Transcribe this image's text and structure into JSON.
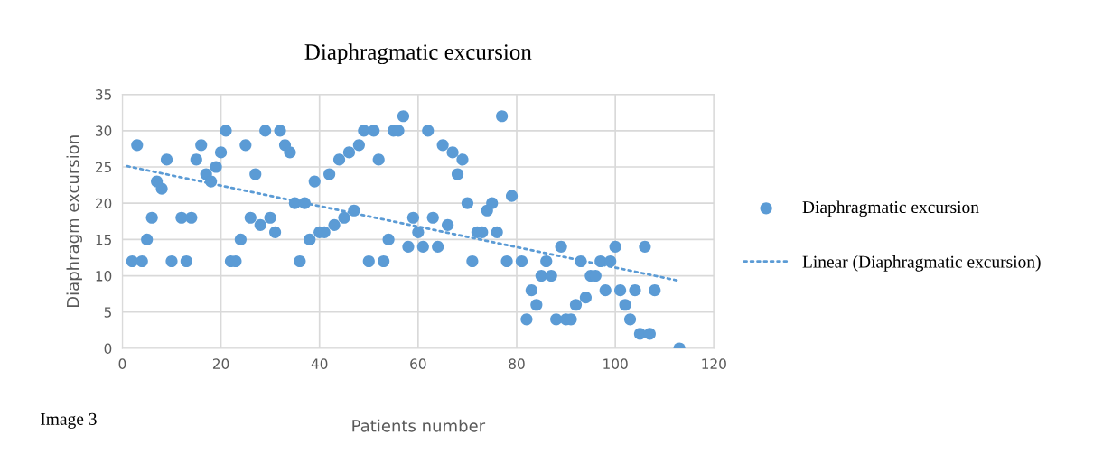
{
  "chart_data": {
    "type": "scatter",
    "title": "Diaphragmatic excursion",
    "xlabel": "Patients number",
    "ylabel": "Diaphragm excursion",
    "annotations": [
      "Image 3"
    ],
    "xlim": [
      0,
      120
    ],
    "xticks": [
      0,
      20,
      40,
      60,
      80,
      100,
      120
    ],
    "ylim": [
      0,
      35
    ],
    "yticks": [
      0,
      5,
      10,
      15,
      20,
      25,
      30,
      35
    ],
    "grid": true,
    "legend": "right",
    "series": [
      {
        "name": "Diaphragmatic excursion",
        "marker": "circle",
        "color": "#5b9bd5",
        "x": [
          2,
          3,
          4,
          5,
          6,
          7,
          8,
          9,
          10,
          12,
          13,
          14,
          15,
          16,
          17,
          18,
          19,
          20,
          21,
          22,
          23,
          24,
          25,
          26,
          27,
          28,
          29,
          30,
          31,
          32,
          33,
          34,
          35,
          36,
          37,
          38,
          39,
          40,
          41,
          42,
          43,
          44,
          45,
          46,
          47,
          48,
          49,
          50,
          51,
          52,
          53,
          54,
          55,
          56,
          57,
          58,
          59,
          60,
          61,
          62,
          63,
          64,
          65,
          66,
          67,
          68,
          69,
          70,
          71,
          72,
          73,
          74,
          75,
          76,
          77,
          78,
          79,
          81,
          82,
          83,
          84,
          85,
          86,
          87,
          88,
          89,
          90,
          91,
          92,
          93,
          94,
          95,
          96,
          97,
          98,
          99,
          100,
          101,
          102,
          103,
          104,
          105,
          106,
          107,
          108,
          113
        ],
        "values": [
          12,
          28,
          12,
          15,
          18,
          23,
          22,
          26,
          12,
          18,
          12,
          18,
          26,
          28,
          24,
          23,
          25,
          27,
          30,
          12,
          12,
          15,
          28,
          18,
          24,
          17,
          30,
          18,
          16,
          30,
          28,
          27,
          20,
          12,
          20,
          15,
          23,
          16,
          16,
          24,
          17,
          26,
          18,
          27,
          19,
          28,
          30,
          12,
          30,
          26,
          12,
          15,
          30,
          30,
          32,
          14,
          18,
          16,
          14,
          30,
          18,
          14,
          28,
          17,
          27,
          24,
          26,
          20,
          12,
          16,
          16,
          19,
          20,
          16,
          32,
          12,
          21,
          12,
          4,
          8,
          6,
          10,
          12,
          10,
          4,
          14,
          4,
          4,
          6,
          12,
          7,
          10,
          10,
          12,
          8,
          12,
          14,
          8,
          6,
          4,
          8,
          2,
          14,
          2,
          8,
          0
        ]
      },
      {
        "name": "Linear (Diaphragmatic excursion)",
        "type": "line",
        "marker": "none",
        "line_style": "dotted",
        "color": "#5b9bd5",
        "x": [
          1,
          113
        ],
        "values": [
          25.1,
          9.3
        ]
      }
    ]
  }
}
